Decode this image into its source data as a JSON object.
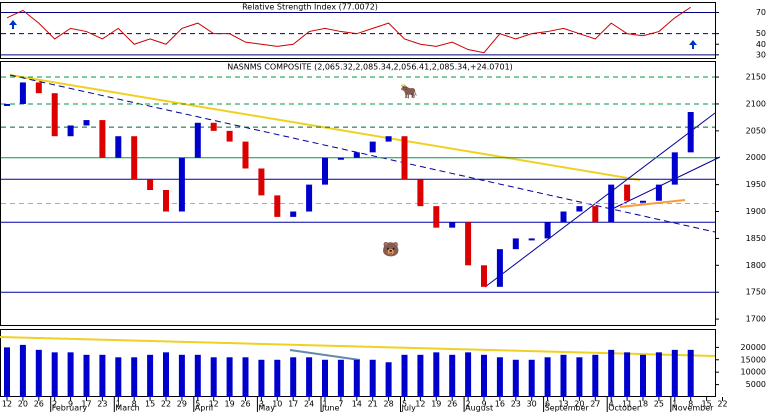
{
  "chart_data": [
    {
      "type": "line",
      "title": "Relative Strength Index (77.0072)",
      "color": "#cc0000",
      "values": [
        65,
        72,
        60,
        45,
        55,
        52,
        45,
        55,
        40,
        45,
        40,
        55,
        60,
        50,
        50,
        42,
        40,
        38,
        40,
        52,
        55,
        52,
        50,
        55,
        60,
        45,
        40,
        38,
        42,
        35,
        32,
        50,
        45,
        50,
        52,
        55,
        50,
        45,
        60,
        50,
        48,
        52,
        65,
        75,
        null,
        null
      ],
      "ylim": [
        27,
        79
      ],
      "yticks": [
        70,
        50,
        40,
        30
      ],
      "levels": [
        {
          "value": 70,
          "color": "#000080",
          "dash": false
        },
        {
          "value": 50,
          "color": "#000080",
          "dash": true
        },
        {
          "value": 30,
          "color": "#000080",
          "dash": false
        }
      ]
    },
    {
      "type": "candlestick",
      "title": "NASNMS COMPOSITE (2,065.32,2,085.34,2,056.41,2,085.34,+24.0701)",
      "up_color": "#0000cc",
      "down_color": "#dd0000",
      "values": [
        2100,
        2140,
        2120,
        2040,
        2060,
        2070,
        2000,
        2040,
        1960,
        1940,
        1900,
        2000,
        2065,
        2050,
        2030,
        1980,
        1930,
        1890,
        1900,
        1950,
        2000,
        2000,
        2010,
        2030,
        2040,
        1960,
        1910,
        1870,
        1880,
        1800,
        1760,
        1830,
        1850,
        1850,
        1880,
        1900,
        1910,
        1880,
        1950,
        1920,
        1920,
        1950,
        2010,
        2085,
        null,
        null
      ],
      "ylim": [
        1689,
        2178
      ],
      "yticks": [
        2150,
        2100,
        2050,
        2000,
        1950,
        1900,
        1850,
        1800,
        1750,
        1700
      ],
      "levels": [
        {
          "value": 2150,
          "color": "#009944",
          "dash": true
        },
        {
          "value": 2100,
          "color": "#009944",
          "dash": true
        },
        {
          "value": 2057,
          "color": "#006633",
          "dash": true
        },
        {
          "value": 2000,
          "color": "#009944",
          "dash": false
        },
        {
          "value": 1960,
          "color": "#0000aa",
          "dash": false
        },
        {
          "value": 1915,
          "color": "#ff9933",
          "dash": true
        },
        {
          "value": 1880,
          "color": "#0000aa",
          "dash": false
        },
        {
          "value": 1750,
          "color": "#0000aa",
          "dash": false
        }
      ]
    },
    {
      "type": "bar",
      "color": "#0000cc",
      "values": [
        20000,
        21000,
        19000,
        18000,
        18000,
        17000,
        17000,
        16000,
        16000,
        17000,
        18000,
        17000,
        17000,
        16000,
        16000,
        16000,
        15000,
        15000,
        16000,
        16000,
        15000,
        15000,
        15000,
        15000,
        14000,
        17000,
        17000,
        18000,
        17000,
        18000,
        17000,
        16000,
        15000,
        15000,
        16000,
        17000,
        16000,
        17000,
        19000,
        18000,
        17000,
        18000,
        19000,
        19000,
        null,
        null
      ],
      "ylim": [
        0,
        27000
      ],
      "yticks": [
        20000,
        15000,
        10000,
        5000
      ]
    },
    {
      "type": "axis",
      "categories": [
        "12",
        "20",
        "26",
        "2",
        "9",
        "17",
        "23",
        "1",
        "8",
        "15",
        "22",
        "29",
        "5",
        "12",
        "19",
        "26",
        "3",
        "10",
        "17",
        "24",
        "1",
        "7",
        "14",
        "21",
        "28",
        "5",
        "12",
        "19",
        "26",
        "2",
        "9",
        "16",
        "23",
        "30",
        "6",
        "13",
        "20",
        "27",
        "4",
        "11",
        "18",
        "25",
        "1",
        "8",
        "15",
        "22"
      ],
      "months": [
        "February",
        "March",
        "April",
        "May",
        "June",
        "July",
        "August",
        "September",
        "October",
        "November"
      ]
    }
  ]
}
